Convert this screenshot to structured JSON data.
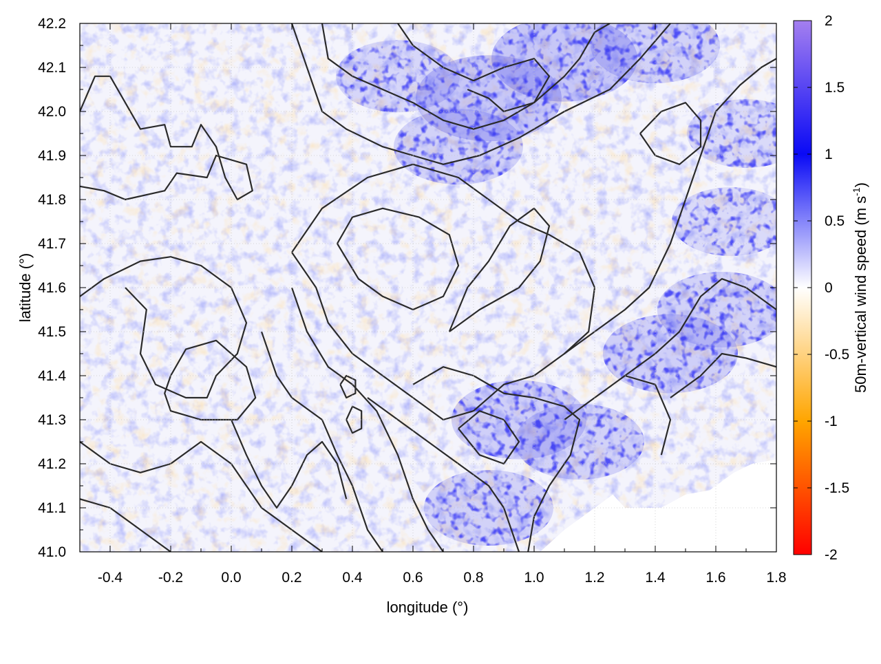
{
  "chart_data": {
    "type": "heatmap",
    "title": "",
    "xlabel": "longitude (°)",
    "ylabel": "latitude (°)",
    "xlim": [
      -0.5,
      1.8
    ],
    "ylim": [
      41.0,
      42.2
    ],
    "x_ticks": [
      "-0.4",
      "-0.2",
      "0.0",
      "0.2",
      "0.4",
      "0.6",
      "0.8",
      "1.0",
      "1.2",
      "1.4",
      "1.6",
      "1.8"
    ],
    "x_tick_values": [
      -0.4,
      -0.2,
      0.0,
      0.2,
      0.4,
      0.6,
      0.8,
      1.0,
      1.2,
      1.4,
      1.6,
      1.8
    ],
    "y_ticks": [
      "41.0",
      "41.1",
      "41.2",
      "41.3",
      "41.4",
      "41.5",
      "41.6",
      "41.7",
      "41.8",
      "41.9",
      "42.0",
      "42.1",
      "42.2"
    ],
    "y_tick_values": [
      41.0,
      41.1,
      41.2,
      41.3,
      41.4,
      41.5,
      41.6,
      41.7,
      41.8,
      41.9,
      42.0,
      42.1,
      42.2
    ],
    "grid": true,
    "colorbar": {
      "label_main": "50m-vertical wind speed (m s",
      "label_sup": "-1",
      "label_end": ")",
      "range": [
        -2,
        2
      ],
      "ticks": [
        "2",
        "1.5",
        "1",
        "0.5",
        "0",
        "-0.5",
        "-1",
        "-1.5",
        "-2"
      ],
      "tick_values": [
        2,
        1.5,
        1,
        0.5,
        0,
        -0.5,
        -1,
        -1.5,
        -2
      ],
      "colors": {
        "max": "#a47ff0",
        "high": "#0a0af5",
        "mid": "#ffffff",
        "low": "#ffa500",
        "min": "#ff0000"
      }
    },
    "hotspots_positive": [
      {
        "lon": 0.55,
        "lat": 42.08,
        "w": 0.5
      },
      {
        "lon": 0.85,
        "lat": 42.03,
        "w": 0.9
      },
      {
        "lon": 1.1,
        "lat": 42.12,
        "w": 0.9
      },
      {
        "lon": 1.4,
        "lat": 42.15,
        "w": 0.6
      },
      {
        "lon": 0.75,
        "lat": 41.92,
        "w": 0.6
      },
      {
        "lon": 0.95,
        "lat": 41.3,
        "w": 0.7
      },
      {
        "lon": 1.15,
        "lat": 41.25,
        "w": 0.6
      },
      {
        "lon": 0.85,
        "lat": 41.1,
        "w": 0.6
      },
      {
        "lon": 1.45,
        "lat": 41.45,
        "w": 0.7
      },
      {
        "lon": 1.62,
        "lat": 41.55,
        "w": 0.6
      },
      {
        "lon": 1.65,
        "lat": 41.75,
        "w": 0.4
      },
      {
        "lon": 1.7,
        "lat": 41.95,
        "w": 0.4
      }
    ],
    "masked_region": {
      "description": "sea",
      "lon_min": 1.2,
      "lat_max": 41.2
    },
    "contour_lines": "terrain elevation contours (values not printed)"
  }
}
